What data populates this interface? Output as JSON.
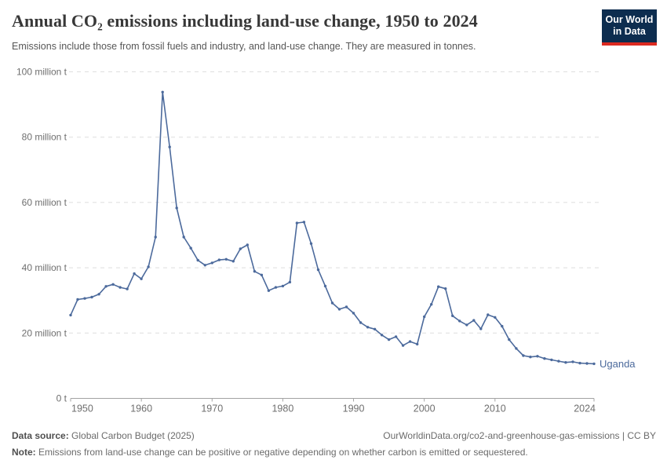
{
  "header": {
    "title": "Annual CO₂ emissions including land-use change, 1950 to 2024",
    "subtitle": "Emissions include those from fossil fuels and industry, and land-use change. They are measured in tonnes.",
    "logo": {
      "line1": "Our World",
      "line2": "in Data",
      "bg_color": "#0d2d4f",
      "bar_color": "#dc2a20"
    }
  },
  "chart_data": {
    "type": "line",
    "title": "Annual CO₂ emissions including land-use change, 1950 to 2024",
    "subtitle": "Emissions include those from fossil fuels and industry, and land-use change. They are measured in tonnes.",
    "xlabel": "",
    "ylabel": "",
    "unit": "million tonnes",
    "ylim": [
      0,
      100
    ],
    "grid": "horizontal-dashed",
    "legend": "end-of-line-label",
    "end_label": "Uganda",
    "line_color": "#4c6a9c",
    "axis_color": "#a3a3a3",
    "grid_color": "#dedede",
    "label_color": "#6e6e6e",
    "yticks": [
      {
        "value": 0,
        "label": "0 t"
      },
      {
        "value": 20,
        "label": "20 million t"
      },
      {
        "value": 40,
        "label": "40 million t"
      },
      {
        "value": 60,
        "label": "60 million t"
      },
      {
        "value": 80,
        "label": "80 million t"
      },
      {
        "value": 100,
        "label": "100 million t"
      }
    ],
    "xticks": [
      {
        "value": 1950,
        "label": "1950"
      },
      {
        "value": 1960,
        "label": "1960"
      },
      {
        "value": 1970,
        "label": "1970"
      },
      {
        "value": 1980,
        "label": "1980"
      },
      {
        "value": 1990,
        "label": "1990"
      },
      {
        "value": 2000,
        "label": "2000"
      },
      {
        "value": 2010,
        "label": "2010"
      },
      {
        "value": 2024,
        "label": "2024"
      }
    ],
    "x": [
      1950,
      1951,
      1952,
      1953,
      1954,
      1955,
      1956,
      1957,
      1958,
      1959,
      1960,
      1961,
      1962,
      1963,
      1964,
      1965,
      1966,
      1967,
      1968,
      1969,
      1970,
      1971,
      1972,
      1973,
      1974,
      1975,
      1976,
      1977,
      1978,
      1979,
      1980,
      1981,
      1982,
      1983,
      1984,
      1985,
      1986,
      1987,
      1988,
      1989,
      1990,
      1991,
      1992,
      1993,
      1994,
      1995,
      1996,
      1997,
      1998,
      1999,
      2000,
      2001,
      2002,
      2003,
      2004,
      2005,
      2006,
      2007,
      2008,
      2009,
      2010,
      2011,
      2012,
      2013,
      2014,
      2015,
      2016,
      2017,
      2018,
      2019,
      2020,
      2021,
      2022,
      2023,
      2024
    ],
    "series": [
      {
        "name": "Uganda",
        "color": "#4c6a9c",
        "values": [
          25.5,
          30.3,
          30.6,
          31.0,
          31.9,
          34.3,
          34.9,
          34.0,
          33.5,
          38.2,
          36.6,
          40.3,
          49.4,
          93.8,
          77.0,
          58.3,
          49.4,
          46.0,
          42.3,
          40.8,
          41.5,
          42.4,
          42.6,
          42.0,
          45.8,
          47.0,
          38.9,
          37.8,
          33.0,
          34.0,
          34.4,
          35.6,
          53.7,
          54.0,
          47.4,
          39.4,
          34.4,
          29.2,
          27.3,
          28.0,
          26.1,
          23.2,
          21.8,
          21.2,
          19.4,
          18.0,
          18.9,
          16.2,
          17.4,
          16.6,
          25.0,
          28.8,
          34.2,
          33.6,
          25.3,
          23.7,
          22.5,
          23.9,
          21.3,
          25.6,
          24.8,
          22.1,
          18.0,
          15.3,
          13.1,
          12.7,
          12.9,
          12.2,
          11.8,
          11.4,
          11.0,
          11.2,
          10.8,
          10.7,
          10.6
        ]
      }
    ]
  },
  "footer": {
    "source_label": "Data source:",
    "source_value": " Global Carbon Budget (2025)",
    "citation": "OurWorldinData.org/co2-and-greenhouse-gas-emissions | CC BY",
    "note_label": "Note:",
    "note_value": " Emissions from land-use change can be positive or negative depending on whether carbon is emitted or sequestered."
  }
}
